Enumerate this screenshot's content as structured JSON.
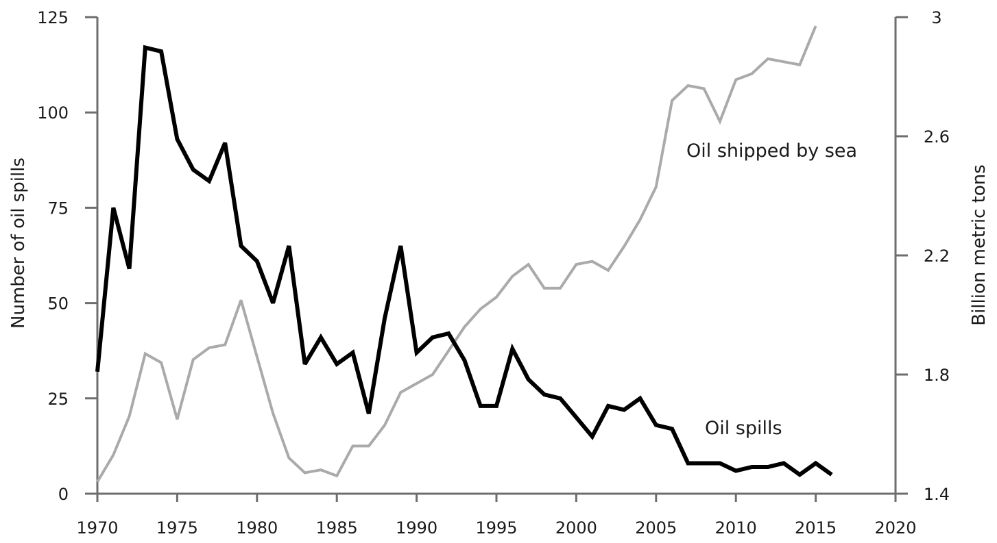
{
  "chart_data": {
    "type": "line",
    "title": "",
    "xlabel": "",
    "ylabel_left": "Number of oil spills",
    "ylabel_right": "Billion metric tons",
    "xlim": [
      1970,
      2020
    ],
    "ylim_left": [
      0,
      125
    ],
    "ylim_right": [
      1.4,
      3.0
    ],
    "grid": false,
    "legend": "none",
    "x_ticks": [
      "1970",
      "1975",
      "1980",
      "1985",
      "1990",
      "1995",
      "2000",
      "2005",
      "2010",
      "2015",
      "2020"
    ],
    "y_left_ticks": [
      "0",
      "25",
      "50",
      "75",
      "100",
      "125"
    ],
    "y_right_ticks": [
      "1.4",
      "1.8",
      "2.2",
      "2.6",
      "3"
    ],
    "series": [
      {
        "name": "Oil spills",
        "axis": "left",
        "color": "#000000",
        "x": [
          1970,
          1971,
          1972,
          1973,
          1974,
          1975,
          1976,
          1977,
          1978,
          1979,
          1980,
          1981,
          1982,
          1983,
          1984,
          1985,
          1986,
          1987,
          1988,
          1989,
          1990,
          1991,
          1992,
          1993,
          1994,
          1995,
          1996,
          1997,
          1998,
          1999,
          2000,
          2001,
          2002,
          2003,
          2004,
          2005,
          2006,
          2007,
          2008,
          2009,
          2010,
          2011,
          2012,
          2013,
          2014,
          2015,
          2016
        ],
        "values": [
          32,
          75,
          59,
          117,
          116,
          93,
          85,
          82,
          92,
          65,
          61,
          50,
          65,
          34,
          41,
          34,
          37,
          21,
          46,
          65,
          37,
          41,
          42,
          35,
          23,
          23,
          38,
          30,
          26,
          25,
          20,
          15,
          23,
          22,
          25,
          18,
          17,
          8,
          8,
          8,
          6,
          7,
          7,
          8,
          5,
          8,
          5
        ]
      },
      {
        "name": "Oil shipped by sea",
        "axis": "right",
        "color": "#aaaaaa",
        "x": [
          1970,
          1971,
          1972,
          1973,
          1974,
          1975,
          1976,
          1977,
          1978,
          1979,
          1980,
          1981,
          1982,
          1983,
          1984,
          1985,
          1986,
          1987,
          1988,
          1989,
          1990,
          1991,
          1992,
          1993,
          1994,
          1995,
          1996,
          1997,
          1998,
          1999,
          2000,
          2001,
          2002,
          2003,
          2004,
          2005,
          2006,
          2007,
          2008,
          2009,
          2010,
          2011,
          2012,
          2013,
          2014,
          2015
        ],
        "values": [
          1.44,
          1.53,
          1.66,
          1.87,
          1.84,
          1.65,
          1.85,
          1.89,
          1.9,
          2.05,
          1.86,
          1.67,
          1.52,
          1.47,
          1.48,
          1.46,
          1.56,
          1.56,
          1.63,
          1.74,
          1.77,
          1.8,
          1.88,
          1.96,
          2.02,
          2.06,
          2.13,
          2.17,
          2.09,
          2.09,
          2.17,
          2.18,
          2.15,
          2.23,
          2.32,
          2.43,
          2.72,
          2.77,
          2.76,
          2.65,
          2.79,
          2.81,
          2.86,
          2.85,
          2.84,
          2.97
        ]
      }
    ],
    "annotations": [
      {
        "text": "Oil shipped by sea",
        "series": "Oil shipped by sea"
      },
      {
        "text": "Oil spills",
        "series": "Oil spills"
      }
    ]
  }
}
